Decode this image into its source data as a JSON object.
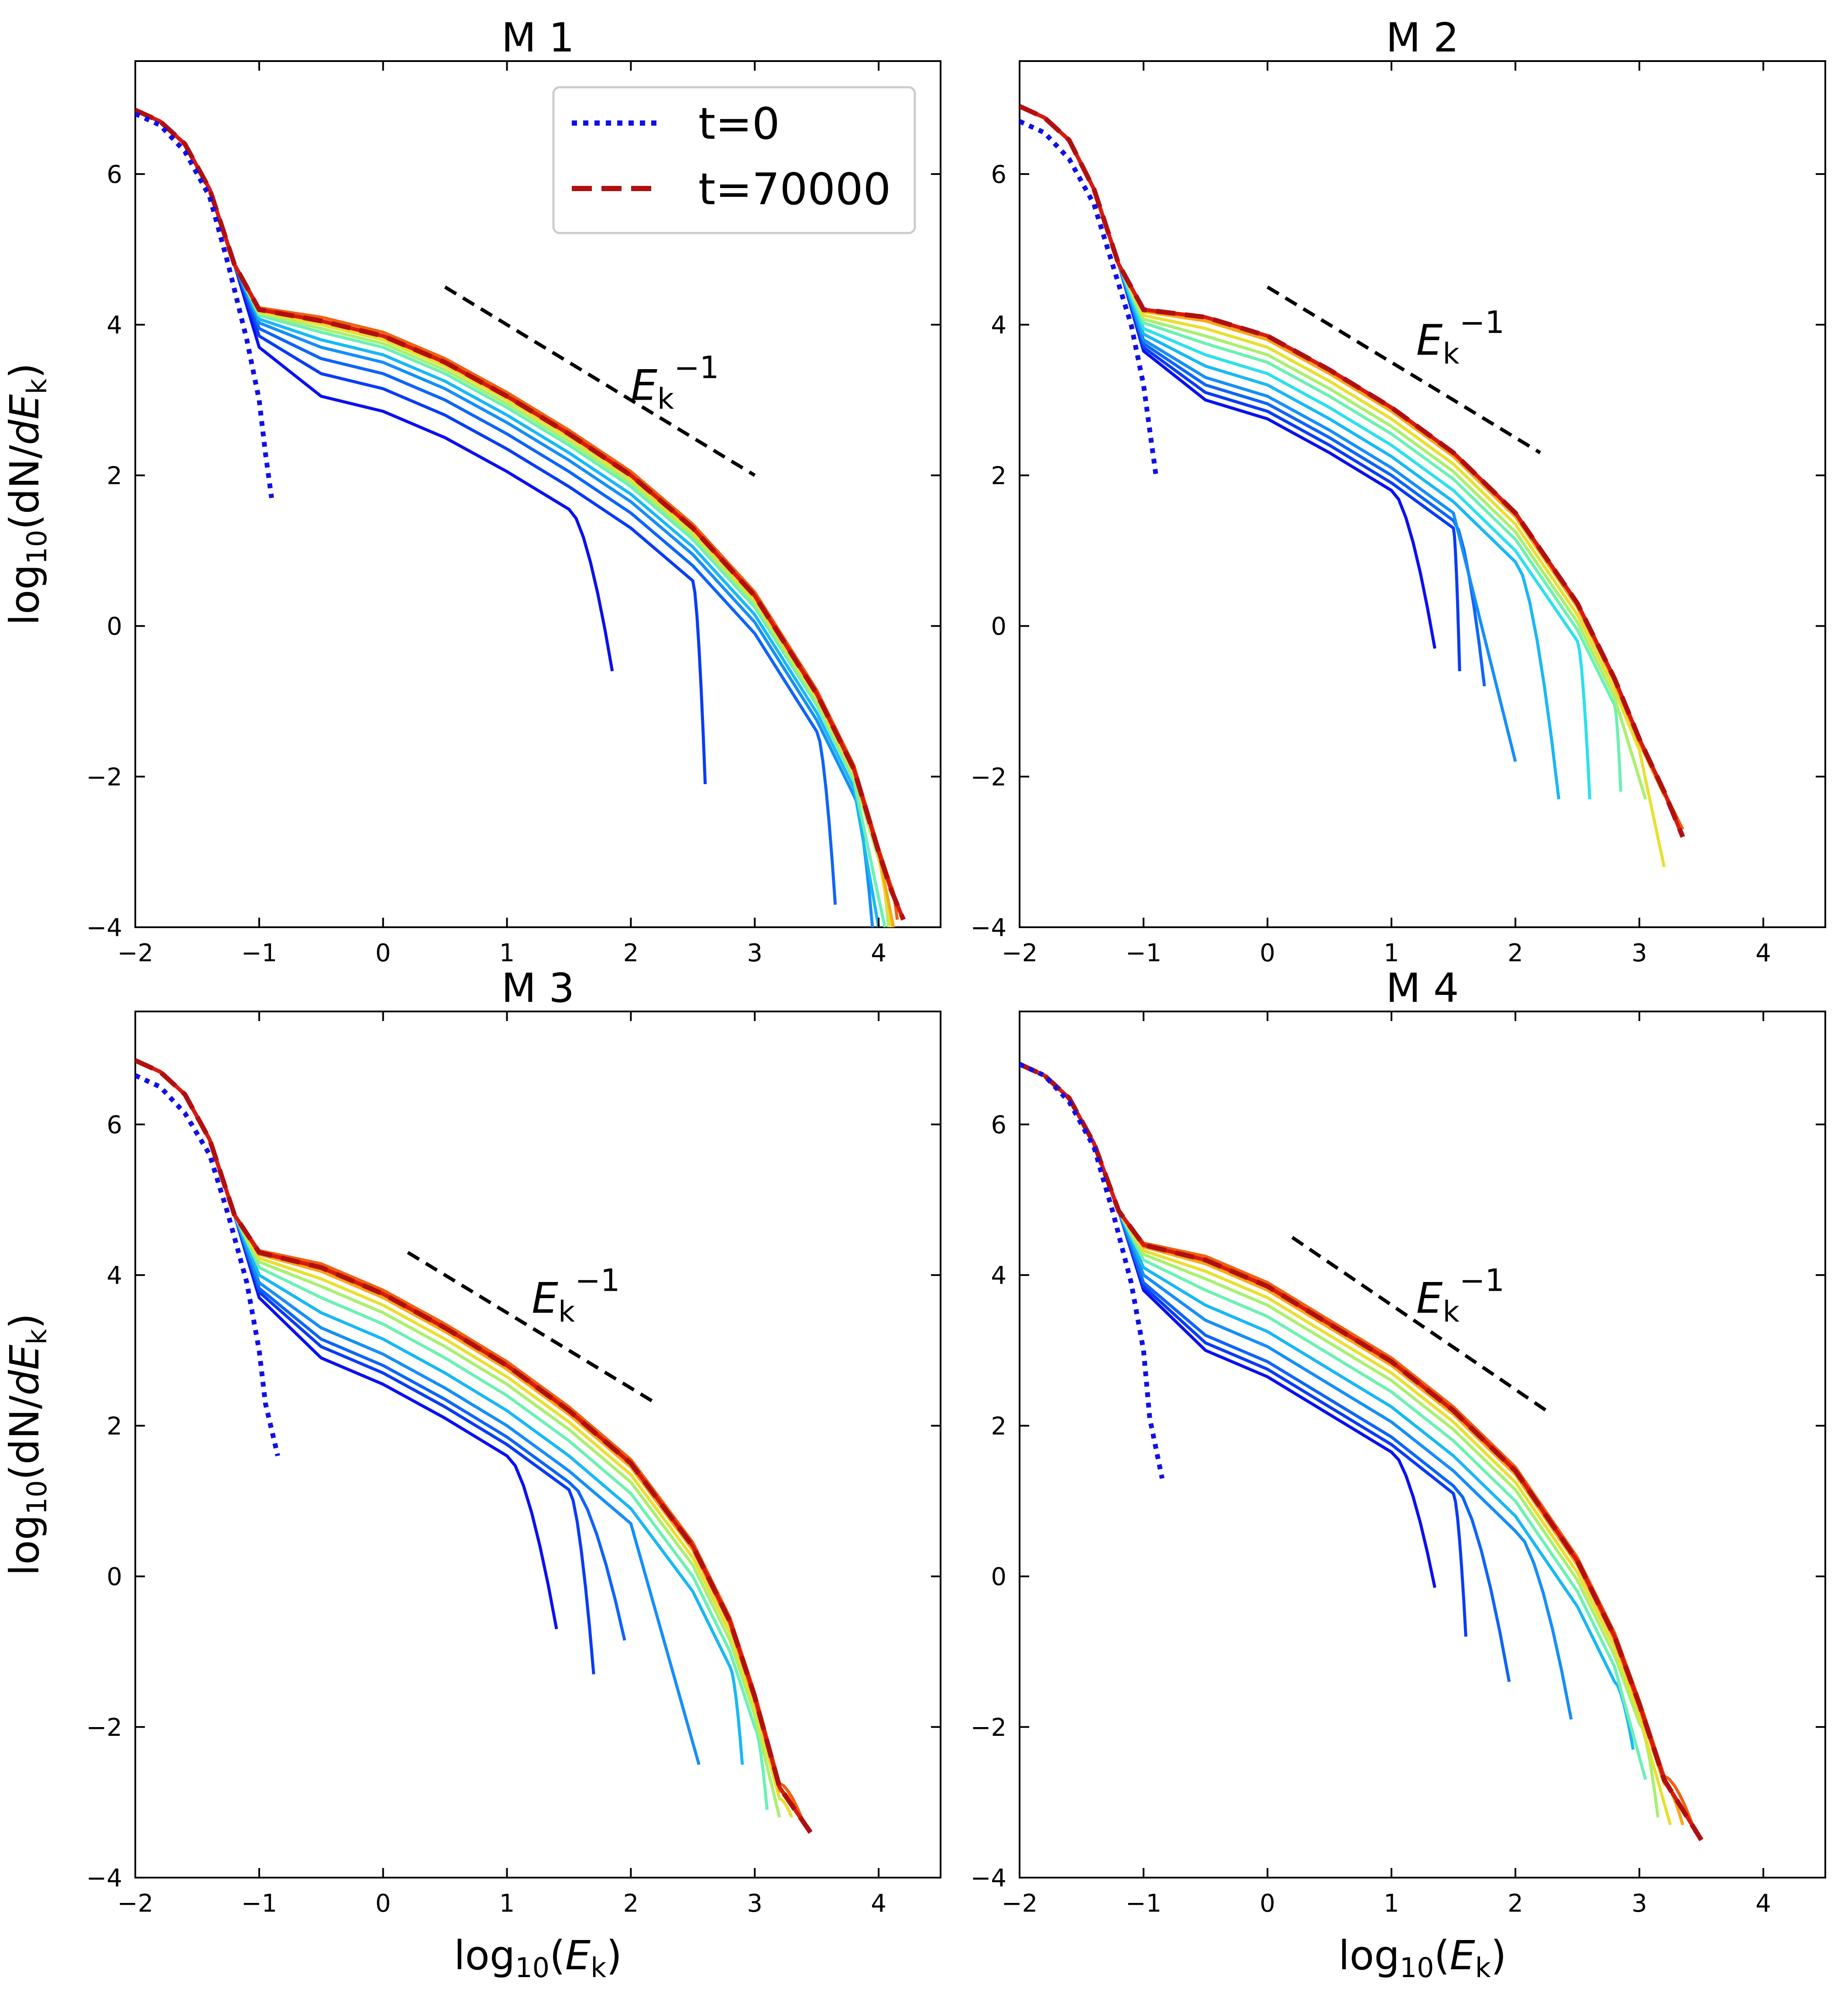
{
  "chart_data": [
    {
      "type": "line",
      "title": "M 1",
      "xlabel": "",
      "ylabel": "log10(dN/dEk)",
      "xlim": [
        -2,
        4.5
      ],
      "ylim": [
        -4,
        7.5
      ],
      "xticks": [
        "−2",
        "−1",
        "0",
        "1",
        "2",
        "3",
        "4"
      ],
      "yticks": [
        "−4",
        "−2",
        "0",
        "2",
        "4",
        "6"
      ],
      "legend": {
        "position": "top-right",
        "entries": [
          "t=0",
          "t=70000"
        ]
      },
      "annotation": {
        "text": "Ek−1",
        "line_x": [
          0.5,
          3.0
        ],
        "line_y": [
          4.5,
          2.0
        ],
        "label_x": 2.0,
        "label_y": 3.0
      },
      "initial": {
        "name": "t=0",
        "x": [
          -2.0,
          -1.8,
          -1.6,
          -1.4,
          -1.25,
          -1.1,
          -1.0,
          -0.95,
          -0.9
        ],
        "y": [
          6.8,
          6.65,
          6.3,
          5.7,
          4.8,
          3.8,
          3.0,
          2.3,
          1.7
        ]
      },
      "final": {
        "name": "t=70000",
        "x": [
          -2.0,
          -1.8,
          -1.6,
          -1.4,
          -1.2,
          -1.0,
          -0.5,
          0.0,
          0.5,
          1.0,
          1.5,
          2.0,
          2.5,
          3.0,
          3.5,
          3.8,
          4.0,
          4.1,
          4.2
        ],
        "y": [
          6.85,
          6.7,
          6.4,
          5.8,
          4.8,
          4.2,
          4.05,
          3.85,
          3.5,
          3.05,
          2.55,
          2.0,
          1.3,
          0.4,
          -0.9,
          -1.9,
          -3.0,
          -3.5,
          -3.9
        ]
      },
      "snapshots": [
        {
          "cutoff": 1.85,
          "end": -0.6,
          "plateau": 3.1
        },
        {
          "cutoff": 2.6,
          "end": -2.1,
          "plateau": 3.4
        },
        {
          "cutoff": 3.65,
          "end": -3.7,
          "plateau": 3.6
        },
        {
          "cutoff": 3.95,
          "end": -4.0,
          "plateau": 3.75
        },
        {
          "cutoff": 4.0,
          "end": -4.0,
          "plateau": 3.85
        },
        {
          "cutoff": 4.05,
          "end": -4.0,
          "plateau": 3.95
        },
        {
          "cutoff": 4.08,
          "end": -4.0,
          "plateau": 4.0
        },
        {
          "cutoff": 4.1,
          "end": -4.0,
          "plateau": 4.05
        },
        {
          "cutoff": 4.12,
          "end": -4.0,
          "plateau": 4.1
        },
        {
          "cutoff": 4.15,
          "end": -3.9,
          "plateau": 4.15
        }
      ]
    },
    {
      "type": "line",
      "title": "M 2",
      "xlabel": "",
      "ylabel": "",
      "xlim": [
        -2,
        4.5
      ],
      "ylim": [
        -4,
        7.5
      ],
      "xticks": [
        "−2",
        "−1",
        "0",
        "1",
        "2",
        "3",
        "4"
      ],
      "yticks": [
        "−4",
        "−2",
        "0",
        "2",
        "4",
        "6"
      ],
      "annotation": {
        "text": "Ek−1",
        "line_x": [
          0.0,
          2.2
        ],
        "line_y": [
          4.5,
          2.3
        ],
        "label_x": 1.2,
        "label_y": 3.6
      },
      "initial": {
        "name": "t=0",
        "x": [
          -2.0,
          -1.8,
          -1.6,
          -1.4,
          -1.25,
          -1.1,
          -1.0,
          -0.95,
          -0.9
        ],
        "y": [
          6.7,
          6.55,
          6.2,
          5.6,
          4.8,
          4.0,
          3.2,
          2.6,
          2.0
        ]
      },
      "final": {
        "name": "t=70000",
        "x": [
          -2.0,
          -1.8,
          -1.6,
          -1.4,
          -1.2,
          -1.0,
          -0.5,
          0.0,
          0.5,
          1.0,
          1.5,
          2.0,
          2.5,
          2.8,
          3.0,
          3.2,
          3.35
        ],
        "y": [
          6.9,
          6.75,
          6.45,
          5.8,
          4.8,
          4.2,
          4.1,
          3.85,
          3.4,
          2.9,
          2.3,
          1.5,
          0.3,
          -0.7,
          -1.5,
          -2.2,
          -2.8
        ]
      },
      "snapshots": [
        {
          "cutoff": 1.35,
          "end": -0.3,
          "plateau": 3.0
        },
        {
          "cutoff": 1.55,
          "end": -0.6,
          "plateau": 3.1
        },
        {
          "cutoff": 1.75,
          "end": -0.8,
          "plateau": 3.2
        },
        {
          "cutoff": 2.0,
          "end": -1.8,
          "plateau": 3.3
        },
        {
          "cutoff": 2.35,
          "end": -2.3,
          "plateau": 3.45
        },
        {
          "cutoff": 2.6,
          "end": -2.3,
          "plateau": 3.6
        },
        {
          "cutoff": 2.85,
          "end": -2.2,
          "plateau": 3.75
        },
        {
          "cutoff": 3.05,
          "end": -2.3,
          "plateau": 3.85
        },
        {
          "cutoff": 3.2,
          "end": -3.2,
          "plateau": 3.95
        },
        {
          "cutoff": 3.3,
          "end": -2.6,
          "plateau": 4.05
        },
        {
          "cutoff": 3.35,
          "end": -2.7,
          "plateau": 4.1
        }
      ]
    },
    {
      "type": "line",
      "title": "M 3",
      "xlabel": "log10(Ek)",
      "ylabel": "log10(dN/dEk)",
      "xlim": [
        -2,
        4.5
      ],
      "ylim": [
        -4,
        7.5
      ],
      "xticks": [
        "−2",
        "−1",
        "0",
        "1",
        "2",
        "3",
        "4"
      ],
      "yticks": [
        "−4",
        "−2",
        "0",
        "2",
        "4",
        "6"
      ],
      "annotation": {
        "text": "Ek−1",
        "line_x": [
          0.2,
          2.2
        ],
        "line_y": [
          4.3,
          2.3
        ],
        "label_x": 1.2,
        "label_y": 3.5
      },
      "initial": {
        "name": "t=0",
        "x": [
          -2.0,
          -1.8,
          -1.6,
          -1.4,
          -1.25,
          -1.1,
          -1.0,
          -0.95,
          -0.85
        ],
        "y": [
          6.65,
          6.5,
          6.15,
          5.6,
          4.8,
          3.9,
          3.0,
          2.3,
          1.6
        ]
      },
      "final": {
        "name": "t=70000",
        "x": [
          -2.0,
          -1.8,
          -1.6,
          -1.4,
          -1.2,
          -1.0,
          -0.5,
          0.0,
          0.5,
          1.0,
          1.5,
          2.0,
          2.5,
          2.8,
          3.0,
          3.2,
          3.45
        ],
        "y": [
          6.85,
          6.7,
          6.4,
          5.8,
          4.8,
          4.3,
          4.1,
          3.75,
          3.3,
          2.8,
          2.2,
          1.5,
          0.4,
          -0.6,
          -1.6,
          -2.8,
          -3.4
        ]
      },
      "snapshots": [
        {
          "cutoff": 1.4,
          "end": -0.7,
          "plateau": 2.9
        },
        {
          "cutoff": 1.7,
          "end": -1.3,
          "plateau": 3.05
        },
        {
          "cutoff": 1.95,
          "end": -0.85,
          "plateau": 3.15
        },
        {
          "cutoff": 2.55,
          "end": -2.5,
          "plateau": 3.3
        },
        {
          "cutoff": 2.9,
          "end": -2.5,
          "plateau": 3.5
        },
        {
          "cutoff": 3.1,
          "end": -3.1,
          "plateau": 3.7
        },
        {
          "cutoff": 3.2,
          "end": -3.2,
          "plateau": 3.85
        },
        {
          "cutoff": 3.3,
          "end": -3.2,
          "plateau": 3.95
        },
        {
          "cutoff": 3.35,
          "end": -3.1,
          "plateau": 4.05
        },
        {
          "cutoff": 3.4,
          "end": -3.3,
          "plateau": 4.15
        }
      ]
    },
    {
      "type": "line",
      "title": "M 4",
      "xlabel": "log10(Ek)",
      "ylabel": "",
      "xlim": [
        -2,
        4.5
      ],
      "ylim": [
        -4,
        7.5
      ],
      "xticks": [
        "−2",
        "−1",
        "0",
        "1",
        "2",
        "3",
        "4"
      ],
      "yticks": [
        "−4",
        "−2",
        "0",
        "2",
        "4",
        "6"
      ],
      "annotation": {
        "text": "Ek−1",
        "line_x": [
          0.2,
          2.25
        ],
        "line_y": [
          4.5,
          2.2
        ],
        "label_x": 1.2,
        "label_y": 3.5
      },
      "initial": {
        "name": "t=0",
        "x": [
          -2.0,
          -1.8,
          -1.6,
          -1.4,
          -1.25,
          -1.1,
          -1.0,
          -0.95,
          -0.85
        ],
        "y": [
          6.8,
          6.65,
          6.3,
          5.7,
          4.85,
          3.9,
          3.0,
          2.1,
          1.3
        ]
      },
      "final": {
        "name": "t=70000",
        "x": [
          -2.0,
          -1.8,
          -1.6,
          -1.4,
          -1.2,
          -1.0,
          -0.5,
          0.0,
          0.5,
          1.0,
          1.5,
          2.0,
          2.5,
          2.8,
          3.0,
          3.2,
          3.5
        ],
        "y": [
          6.8,
          6.65,
          6.35,
          5.75,
          4.85,
          4.4,
          4.2,
          3.85,
          3.35,
          2.85,
          2.2,
          1.4,
          0.2,
          -0.8,
          -1.7,
          -2.7,
          -3.5
        ]
      },
      "snapshots": [
        {
          "cutoff": 1.35,
          "end": -0.15,
          "plateau": 2.9
        },
        {
          "cutoff": 1.6,
          "end": -0.8,
          "plateau": 3.0
        },
        {
          "cutoff": 1.95,
          "end": -1.4,
          "plateau": 3.1
        },
        {
          "cutoff": 2.45,
          "end": -1.9,
          "plateau": 3.3
        },
        {
          "cutoff": 2.95,
          "end": -2.3,
          "plateau": 3.5
        },
        {
          "cutoff": 3.05,
          "end": -2.7,
          "plateau": 3.7
        },
        {
          "cutoff": 3.15,
          "end": -3.2,
          "plateau": 3.85
        },
        {
          "cutoff": 3.25,
          "end": -3.3,
          "plateau": 3.95
        },
        {
          "cutoff": 3.35,
          "end": -3.3,
          "plateau": 4.05
        },
        {
          "cutoff": 3.45,
          "end": -3.4,
          "plateau": 4.15
        }
      ]
    }
  ],
  "colors": {
    "initial": "#1010e8",
    "final": "#b01010",
    "annotation": "#000000",
    "colormap": [
      "#0a10f0",
      "#0a3cf5",
      "#0e64f8",
      "#168ef8",
      "#18b8f4",
      "#2ce0ec",
      "#6cf0b4",
      "#a8f070",
      "#e8e030",
      "#f8a818",
      "#f06010",
      "#d81a10"
    ]
  }
}
